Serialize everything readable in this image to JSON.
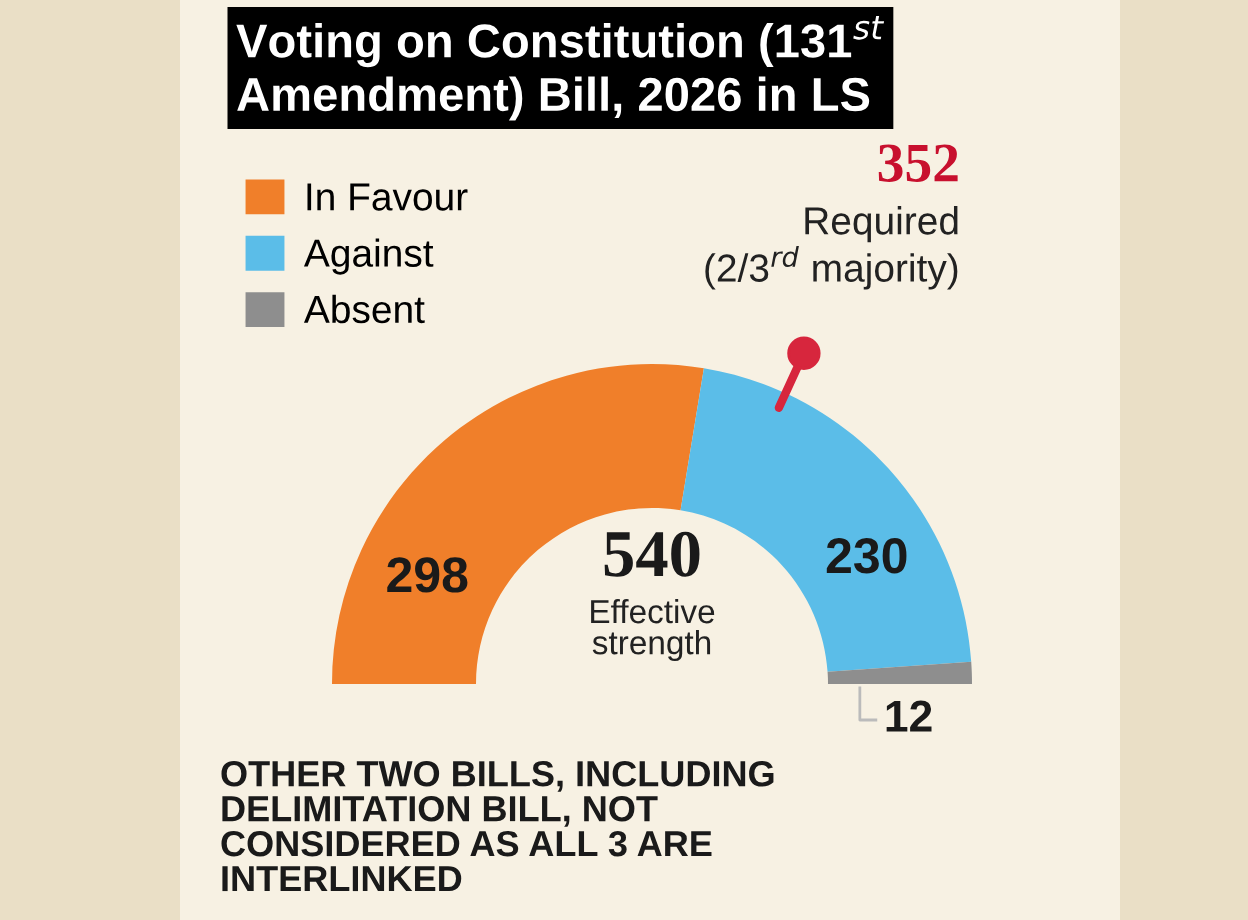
{
  "chart_data": {
    "type": "donut",
    "title": "Voting on Constitution (131$^{st}$ Amendment) Bill, 2026 in LS",
    "categories": [
      "In Favour",
      "Against",
      "Absent"
    ],
    "values": [
      298,
      230,
      12
    ],
    "colors": [
      "#f07f2a",
      "#5bbde8",
      "#8e8e8e"
    ],
    "data_labels": true,
    "legend": "top left",
    "annotations": [
      "352",
      "Required (2/3$^{rd}$ majority)",
      "540",
      "Effective strength",
      "OTHER TWO BILLS, INCLUDING DELIMITATION BILL, NOT CONSIDERED AS ALL 3 ARE INTERLINKED"
    ]
  }
}
